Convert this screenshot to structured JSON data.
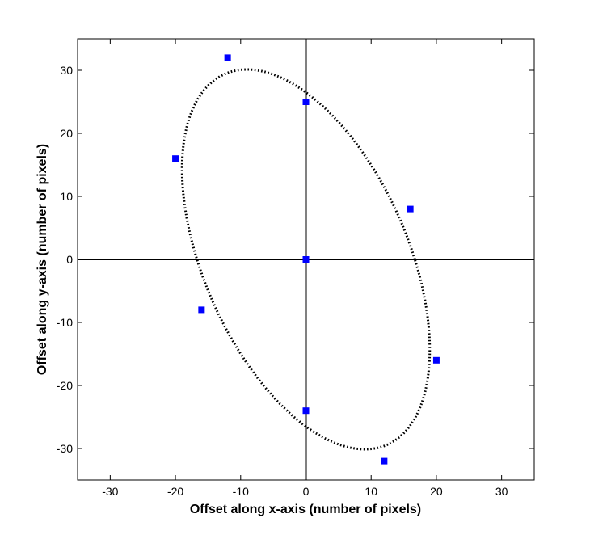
{
  "chart_data": {
    "type": "scatter",
    "title": "",
    "xlabel": "Offset along x-axis (number of pixels)",
    "ylabel": "Offset along y-axis (number of pixels)",
    "xlim": [
      -35,
      35
    ],
    "ylim": [
      -35,
      35
    ],
    "xticks": [
      -30,
      -20,
      -10,
      0,
      10,
      20,
      30
    ],
    "yticks": [
      -30,
      -20,
      -10,
      0,
      10,
      20,
      30
    ],
    "grid": false,
    "legend": "none",
    "marker_color": "#0000ff",
    "points": [
      {
        "x": -12,
        "y": 32
      },
      {
        "x": 0,
        "y": 25
      },
      {
        "x": -20,
        "y": 16
      },
      {
        "x": 16,
        "y": 8
      },
      {
        "x": 0,
        "y": 0
      },
      {
        "x": -16,
        "y": -8
      },
      {
        "x": 20,
        "y": -16
      },
      {
        "x": 0,
        "y": -24
      },
      {
        "x": 12,
        "y": -32
      }
    ],
    "ellipse": {
      "style": "dotted",
      "color": "#000000",
      "center": [
        0,
        0
      ],
      "passes_through": [
        [
          -8.3,
          30.1
        ],
        [
          8.3,
          -30.1
        ],
        [
          -16.7,
          0
        ],
        [
          16.7,
          0
        ],
        [
          0,
          26.5
        ],
        [
          0,
          -26.5
        ]
      ]
    }
  }
}
